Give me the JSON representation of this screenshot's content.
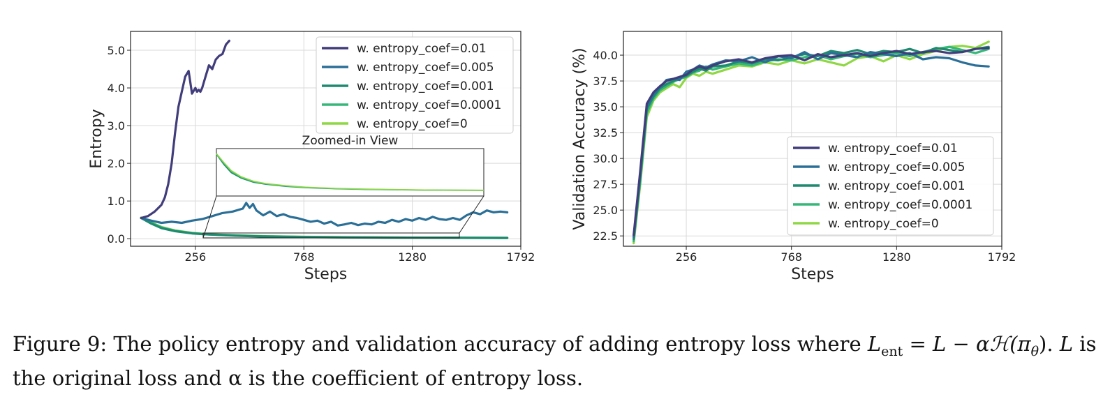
{
  "chart_data": [
    {
      "type": "line",
      "title": "",
      "xlabel": "Steps",
      "ylabel": "Entropy",
      "xticks": [
        256,
        768,
        1280,
        1792
      ],
      "xtick_labels": [
        "256",
        "768",
        "1280",
        "1792"
      ],
      "yticks": [
        0,
        1,
        2,
        3,
        4,
        5
      ],
      "ytick_labels": [
        "0.0",
        "1.0",
        "2.0",
        "3.0",
        "4.0",
        "5.0"
      ],
      "xlim": [
        -50,
        1792
      ],
      "ylim": [
        -0.2,
        5.5
      ],
      "grid": true,
      "legend_position": "top-right",
      "series": [
        {
          "name": "w. entropy_coef=0.01",
          "color": "#413d7b",
          "x": [
            0,
            32,
            64,
            96,
            112,
            128,
            144,
            160,
            176,
            192,
            208,
            224,
            240,
            256,
            264,
            272,
            280,
            288,
            304,
            320,
            336,
            352,
            368,
            384,
            400,
            416
          ],
          "values": [
            0.55,
            0.6,
            0.72,
            0.9,
            1.1,
            1.45,
            2.0,
            2.8,
            3.5,
            3.9,
            4.3,
            4.45,
            3.85,
            4.0,
            3.9,
            3.95,
            3.9,
            4.0,
            4.3,
            4.6,
            4.5,
            4.75,
            4.85,
            4.9,
            5.15,
            5.25
          ]
        },
        {
          "name": "w. entropy_coef=0.005",
          "color": "#2a6f97",
          "x": [
            0,
            48,
            96,
            144,
            192,
            240,
            288,
            336,
            384,
            432,
            480,
            496,
            512,
            528,
            544,
            576,
            608,
            640,
            672,
            704,
            736,
            768,
            800,
            832,
            864,
            896,
            928,
            960,
            992,
            1024,
            1056,
            1088,
            1120,
            1152,
            1184,
            1216,
            1248,
            1280,
            1312,
            1344,
            1376,
            1408,
            1440,
            1472,
            1504,
            1536,
            1568,
            1600,
            1632,
            1664,
            1696,
            1728
          ],
          "values": [
            0.55,
            0.48,
            0.42,
            0.45,
            0.42,
            0.48,
            0.52,
            0.6,
            0.68,
            0.72,
            0.8,
            0.95,
            0.82,
            0.92,
            0.75,
            0.62,
            0.72,
            0.6,
            0.65,
            0.58,
            0.55,
            0.5,
            0.45,
            0.48,
            0.4,
            0.45,
            0.35,
            0.38,
            0.42,
            0.36,
            0.4,
            0.38,
            0.45,
            0.42,
            0.5,
            0.45,
            0.52,
            0.48,
            0.55,
            0.5,
            0.58,
            0.52,
            0.5,
            0.55,
            0.5,
            0.62,
            0.7,
            0.65,
            0.75,
            0.7,
            0.72,
            0.7
          ]
        },
        {
          "name": "w. entropy_coef=0.001",
          "color": "#1f8a70",
          "x": [
            0,
            48,
            96,
            160,
            240,
            320,
            448,
            576,
            768,
            960,
            1152,
            1344,
            1536,
            1728
          ],
          "values": [
            0.55,
            0.4,
            0.28,
            0.2,
            0.14,
            0.11,
            0.08,
            0.06,
            0.045,
            0.035,
            0.03,
            0.025,
            0.022,
            0.02
          ]
        },
        {
          "name": "w. entropy_coef=0.0001",
          "color": "#35b779",
          "x": [
            0,
            48,
            96,
            160,
            240,
            320,
            448,
            576,
            768,
            960,
            1152,
            1344,
            1536,
            1728
          ],
          "values": [
            0.55,
            0.42,
            0.3,
            0.21,
            0.15,
            0.115,
            0.085,
            0.065,
            0.048,
            0.038,
            0.032,
            0.027,
            0.024,
            0.022
          ]
        },
        {
          "name": "w. entropy_coef=0",
          "color": "#8fd744",
          "x": [
            0,
            48,
            96,
            160,
            240,
            320,
            448,
            576,
            768,
            960,
            1152,
            1344,
            1536,
            1728
          ],
          "values": [
            0.56,
            0.43,
            0.31,
            0.22,
            0.155,
            0.12,
            0.09,
            0.068,
            0.05,
            0.04,
            0.034,
            0.028,
            0.025,
            0.023
          ]
        }
      ],
      "annotations": [
        {
          "text": "Zoomed-in View",
          "kind": "inset"
        }
      ]
    },
    {
      "type": "line",
      "title": "",
      "xlabel": "Steps",
      "ylabel": "Validation Accuracy (%)",
      "xticks": [
        256,
        768,
        1280,
        1792
      ],
      "xtick_labels": [
        "256",
        "768",
        "1280",
        "1792"
      ],
      "yticks": [
        22.5,
        25.0,
        27.5,
        30.0,
        32.5,
        35.0,
        37.5,
        40.0
      ],
      "ytick_labels": [
        "22.5",
        "25.0",
        "27.5",
        "30.0",
        "32.5",
        "35.0",
        "37.5",
        "40.0"
      ],
      "xlim": [
        -50,
        1792
      ],
      "ylim": [
        21.5,
        42.3
      ],
      "grid": true,
      "legend_position": "lower-right",
      "series": [
        {
          "name": "w. entropy_coef=0.01",
          "color": "#413d7b",
          "x": [
            0,
            32,
            64,
            96,
            128,
            160,
            192,
            224,
            256,
            288,
            320,
            352,
            384,
            448,
            512,
            576,
            640,
            704,
            768,
            832,
            896,
            960,
            1024,
            1088,
            1152,
            1216,
            1280,
            1344,
            1408,
            1472,
            1536,
            1600,
            1664,
            1728
          ],
          "values": [
            22.6,
            28.8,
            35.3,
            36.4,
            37.0,
            37.5,
            37.7,
            37.9,
            38.1,
            38.6,
            38.9,
            38.7,
            39.0,
            39.4,
            39.6,
            39.3,
            39.7,
            39.9,
            40.0,
            39.5,
            40.1,
            39.8,
            40.0,
            40.2,
            39.9,
            40.2,
            40.4,
            40.1,
            40.3,
            40.4,
            40.2,
            40.3,
            40.6,
            40.7
          ]
        },
        {
          "name": "w. entropy_coef=0.005",
          "color": "#2a6f97",
          "x": [
            0,
            32,
            64,
            96,
            128,
            160,
            192,
            224,
            256,
            288,
            320,
            352,
            384,
            448,
            512,
            576,
            640,
            704,
            768,
            832,
            896,
            960,
            1024,
            1088,
            1152,
            1216,
            1280,
            1344,
            1408,
            1472,
            1536,
            1600,
            1664,
            1728
          ],
          "values": [
            22.4,
            28.5,
            35.0,
            36.2,
            36.9,
            37.6,
            37.7,
            37.6,
            38.4,
            38.6,
            39.0,
            38.8,
            39.1,
            39.5,
            39.4,
            39.8,
            39.3,
            39.9,
            39.7,
            40.3,
            39.6,
            40.2,
            40.0,
            39.8,
            40.3,
            40.1,
            39.9,
            40.2,
            39.6,
            39.8,
            39.7,
            39.3,
            39.0,
            38.9
          ]
        },
        {
          "name": "w. entropy_coef=0.001",
          "color": "#1f8a70",
          "x": [
            0,
            32,
            64,
            96,
            128,
            160,
            192,
            224,
            256,
            288,
            320,
            352,
            384,
            448,
            512,
            576,
            640,
            704,
            768,
            832,
            896,
            960,
            1024,
            1088,
            1152,
            1216,
            1280,
            1344,
            1408,
            1472,
            1536,
            1600,
            1664,
            1728
          ],
          "values": [
            22.2,
            28.2,
            34.8,
            36.0,
            36.8,
            37.2,
            37.5,
            37.8,
            38.0,
            38.4,
            38.7,
            38.5,
            38.9,
            39.0,
            39.4,
            39.2,
            39.6,
            39.5,
            39.8,
            40.1,
            39.9,
            40.4,
            40.2,
            40.5,
            40.1,
            40.4,
            40.3,
            40.6,
            40.2,
            40.7,
            40.5,
            40.3,
            40.6,
            40.8
          ]
        },
        {
          "name": "w. entropy_coef=0.0001",
          "color": "#35b779",
          "x": [
            0,
            32,
            64,
            96,
            128,
            160,
            192,
            224,
            256,
            288,
            320,
            352,
            384,
            448,
            512,
            576,
            640,
            704,
            768,
            832,
            896,
            960,
            1024,
            1088,
            1152,
            1216,
            1280,
            1344,
            1408,
            1472,
            1536,
            1600,
            1664,
            1728
          ],
          "values": [
            22.0,
            27.8,
            34.4,
            35.8,
            36.6,
            37.0,
            37.4,
            37.7,
            37.9,
            38.3,
            38.5,
            38.9,
            38.6,
            38.9,
            39.2,
            39.0,
            39.4,
            39.6,
            39.5,
            39.8,
            40.0,
            39.6,
            39.9,
            40.1,
            39.8,
            40.0,
            40.2,
            39.9,
            40.3,
            40.6,
            40.8,
            40.5,
            40.2,
            40.6
          ]
        },
        {
          "name": "w. entropy_coef=0",
          "color": "#8fd744",
          "x": [
            0,
            32,
            64,
            96,
            128,
            160,
            192,
            224,
            256,
            288,
            320,
            352,
            384,
            448,
            512,
            576,
            640,
            704,
            768,
            832,
            896,
            960,
            1024,
            1088,
            1152,
            1216,
            1280,
            1344,
            1408,
            1472,
            1536,
            1600,
            1664,
            1728
          ],
          "values": [
            21.8,
            27.5,
            34.0,
            35.6,
            36.4,
            36.8,
            37.2,
            36.9,
            37.8,
            38.2,
            38.0,
            38.4,
            38.2,
            38.6,
            39.0,
            38.9,
            39.3,
            39.1,
            39.5,
            39.2,
            39.6,
            39.3,
            39.0,
            39.7,
            39.9,
            39.4,
            40.0,
            39.6,
            40.1,
            40.4,
            40.8,
            40.9,
            40.7,
            41.3
          ]
        }
      ]
    }
  ],
  "caption": {
    "line1_prefix": "Figure 9: The policy entropy and validation accuracy of adding entropy loss where ",
    "math_L_ent": "L",
    "math_sub_ent": "ent",
    "math_eq": " = L − αℋ(π",
    "math_sub_theta": "θ",
    "math_close": "). ",
    "line1_suffix_L": "L",
    "line1_suffix": " is",
    "line2": "the original loss and α is the coefficient of entropy loss."
  }
}
